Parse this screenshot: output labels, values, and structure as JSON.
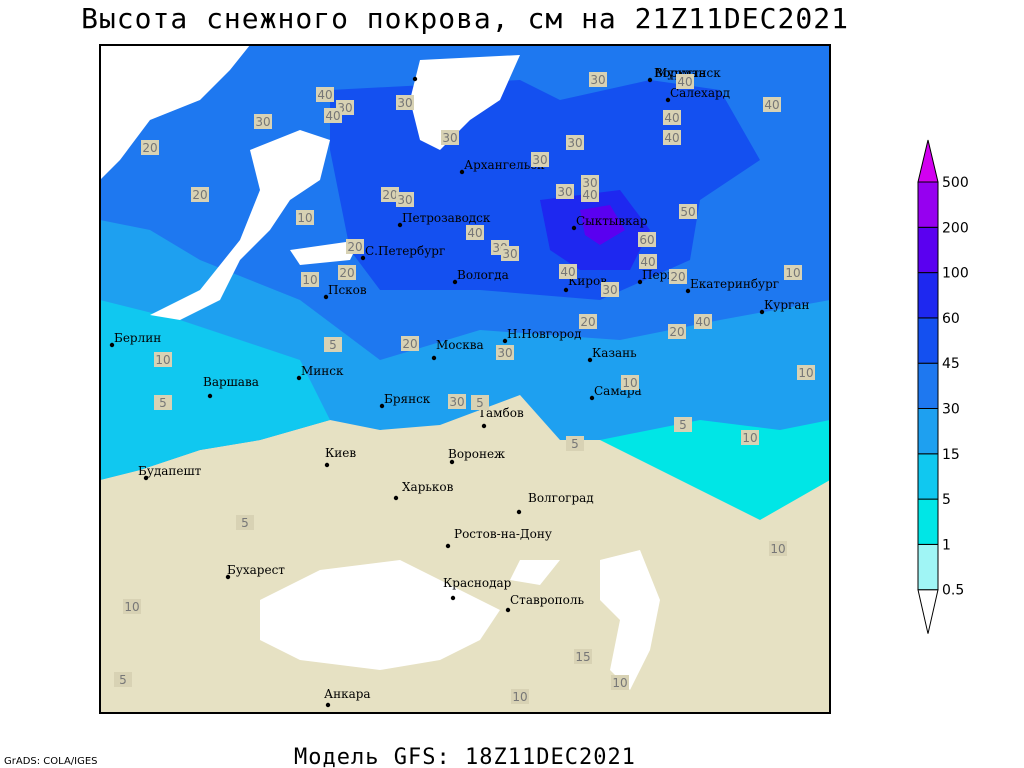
{
  "title": "Высота снежного покрова, см на 21Z11DEC2021",
  "subtitle": "Модель GFS: 18Z11DEC2021",
  "credit": "GrADS: COLA/IGES",
  "cities": [
    "Мурманск",
    "Воркута",
    "Салехард",
    "Архангельск",
    "Сыктывкар",
    "Петрозаводск",
    "С.Петербург",
    "Вологда",
    "Киров",
    "Пермь",
    "Екатеринбург",
    "Курган",
    "Псков",
    "Н.Новгород",
    "Казань",
    "Москва",
    "Берлин",
    "Минск",
    "Варшава",
    "Брянск",
    "Тамбов",
    "Самара",
    "Киев",
    "Воронеж",
    "Будапешт",
    "Харьков",
    "Волгоград",
    "Ростов-на-Дону",
    "Бухарест",
    "Краснодар",
    "Ставрополь",
    "Анкара"
  ],
  "contour_labels": [
    40,
    30,
    30,
    30,
    40,
    30,
    30,
    40,
    40,
    40,
    40,
    30,
    30,
    20,
    20,
    10,
    20,
    30,
    30,
    40,
    30,
    20,
    20,
    10,
    40,
    30,
    30,
    60,
    50,
    40,
    40,
    30,
    20,
    10,
    40,
    20,
    20,
    20,
    30,
    10,
    5,
    10,
    10,
    5,
    30,
    5,
    5,
    10,
    5,
    5,
    10,
    5,
    10,
    15,
    10,
    10
  ],
  "colorbar": {
    "levels": [
      0.5,
      1,
      5,
      15,
      30,
      45,
      60,
      100,
      200,
      500
    ],
    "colors": [
      "#ffffff",
      "#a0f5f5",
      "#00e6e6",
      "#10c8f0",
      "#1ea0f0",
      "#1e78f0",
      "#1450f0",
      "#1e28f0",
      "#5a00f0",
      "#9600f0",
      "#d200f0"
    ]
  }
}
